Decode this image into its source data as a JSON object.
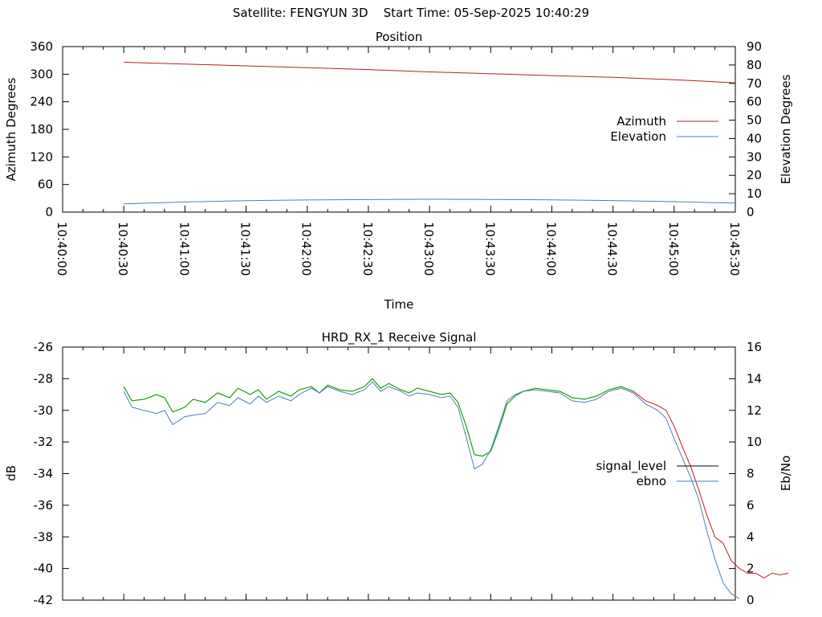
{
  "header": {
    "satellite_label": "Satellite: FENGYUN 3D",
    "start_label": "Start Time: 05-Sep-2025 10:40:29"
  },
  "colors": {
    "azimuth": "#b22222",
    "elevation": "#4a7fb5",
    "signal_level_legend": "#000000",
    "signal_level_trace": "#b22222",
    "signal_level_overlay": "#00b000",
    "ebno": "#4a7fb5"
  },
  "chart_data": [
    {
      "type": "line",
      "title": "Position",
      "xlabel": "Time",
      "ylabel": "Azimuth Degrees",
      "y2label": "Elevation Degrees",
      "x_ticks": [
        "10:40:00",
        "10:40:30",
        "10:41:00",
        "10:41:30",
        "10:42:00",
        "10:42:30",
        "10:43:00",
        "10:43:30",
        "10:44:00",
        "10:44:30",
        "10:45:00",
        "10:45:30"
      ],
      "x_range_seconds_after": [
        0,
        330
      ],
      "ylim": [
        0,
        360
      ],
      "y_ticks": [
        0,
        60,
        120,
        180,
        240,
        300,
        360
      ],
      "y2lim": [
        0,
        90
      ],
      "y2_ticks": [
        0,
        10,
        20,
        30,
        40,
        50,
        60,
        70,
        80,
        90
      ],
      "legend_position": "right",
      "series": [
        {
          "name": "Azimuth",
          "axis": "y",
          "color_key": "azimuth",
          "points": [
            [
              30,
              326
            ],
            [
              60,
              322
            ],
            [
              90,
              318
            ],
            [
              120,
              314
            ],
            [
              150,
              310
            ],
            [
              180,
              305
            ],
            [
              210,
              301
            ],
            [
              240,
              297
            ],
            [
              270,
              293
            ],
            [
              300,
              288
            ],
            [
              318,
              284
            ],
            [
              330,
              281
            ]
          ]
        },
        {
          "name": "Elevation",
          "axis": "y2",
          "color_key": "elevation",
          "points": [
            [
              30,
              4.5
            ],
            [
              60,
              5.5
            ],
            [
              90,
              6.2
            ],
            [
              120,
              6.6
            ],
            [
              150,
              6.8
            ],
            [
              180,
              7.0
            ],
            [
              210,
              6.9
            ],
            [
              240,
              6.7
            ],
            [
              270,
              6.3
            ],
            [
              300,
              5.7
            ],
            [
              318,
              5.2
            ],
            [
              330,
              4.9
            ]
          ]
        }
      ]
    },
    {
      "type": "line",
      "title": "HRD_RX_1 Receive Signal",
      "xlabel": "",
      "ylabel": "dB",
      "y2label": "Eb/No",
      "x_range_seconds_after": [
        0,
        330
      ],
      "ylim": [
        -42,
        -26
      ],
      "y_ticks": [
        -42,
        -40,
        -38,
        -36,
        -34,
        -32,
        -30,
        -28,
        -26
      ],
      "y2lim": [
        0,
        16
      ],
      "y2_ticks": [
        0,
        2,
        4,
        6,
        8,
        10,
        12,
        14,
        16
      ],
      "legend_position": "right",
      "series": [
        {
          "name": "signal_level",
          "axis": "y",
          "color_key": "signal_level_trace",
          "overlay_color_key": "signal_level_overlay",
          "overlay_until": 282,
          "points": [
            [
              30,
              -28.5
            ],
            [
              34,
              -29.4
            ],
            [
              40,
              -29.3
            ],
            [
              46,
              -29.0
            ],
            [
              50,
              -29.2
            ],
            [
              54,
              -30.1
            ],
            [
              60,
              -29.8
            ],
            [
              64,
              -29.3
            ],
            [
              70,
              -29.5
            ],
            [
              76,
              -28.9
            ],
            [
              82,
              -29.2
            ],
            [
              86,
              -28.6
            ],
            [
              92,
              -29.0
            ],
            [
              96,
              -28.7
            ],
            [
              100,
              -29.3
            ],
            [
              106,
              -28.8
            ],
            [
              112,
              -29.1
            ],
            [
              116,
              -28.7
            ],
            [
              122,
              -28.5
            ],
            [
              126,
              -28.9
            ],
            [
              130,
              -28.4
            ],
            [
              136,
              -28.7
            ],
            [
              142,
              -28.8
            ],
            [
              148,
              -28.5
            ],
            [
              152,
              -28.0
            ],
            [
              156,
              -28.6
            ],
            [
              160,
              -28.3
            ],
            [
              166,
              -28.7
            ],
            [
              170,
              -28.9
            ],
            [
              174,
              -28.6
            ],
            [
              180,
              -28.8
            ],
            [
              186,
              -29.0
            ],
            [
              190,
              -28.9
            ],
            [
              194,
              -29.5
            ],
            [
              198,
              -31.0
            ],
            [
              202,
              -32.8
            ],
            [
              206,
              -32.9
            ],
            [
              210,
              -32.6
            ],
            [
              214,
              -31.2
            ],
            [
              218,
              -29.6
            ],
            [
              222,
              -29.1
            ],
            [
              226,
              -28.8
            ],
            [
              232,
              -28.6
            ],
            [
              238,
              -28.7
            ],
            [
              244,
              -28.8
            ],
            [
              250,
              -29.2
            ],
            [
              256,
              -29.3
            ],
            [
              262,
              -29.1
            ],
            [
              268,
              -28.7
            ],
            [
              274,
              -28.5
            ],
            [
              280,
              -28.8
            ],
            [
              286,
              -29.4
            ],
            [
              292,
              -29.7
            ],
            [
              296,
              -30.0
            ],
            [
              300,
              -31.0
            ],
            [
              304,
              -32.3
            ],
            [
              308,
              -33.5
            ],
            [
              312,
              -35.0
            ],
            [
              316,
              -36.6
            ],
            [
              320,
              -38.0
            ],
            [
              324,
              -38.4
            ],
            [
              328,
              -39.5
            ],
            [
              332,
              -40.0
            ],
            [
              336,
              -40.3
            ],
            [
              340,
              -40.3
            ],
            [
              344,
              -40.6
            ],
            [
              348,
              -40.3
            ],
            [
              352,
              -40.4
            ],
            [
              356,
              -40.3
            ]
          ]
        },
        {
          "name": "ebno",
          "axis": "y2",
          "color_key": "ebno",
          "points": [
            [
              30,
              13.2
            ],
            [
              34,
              12.2
            ],
            [
              40,
              12.0
            ],
            [
              46,
              11.8
            ],
            [
              50,
              12.0
            ],
            [
              54,
              11.1
            ],
            [
              60,
              11.6
            ],
            [
              64,
              11.7
            ],
            [
              70,
              11.8
            ],
            [
              76,
              12.5
            ],
            [
              82,
              12.3
            ],
            [
              86,
              12.8
            ],
            [
              92,
              12.4
            ],
            [
              96,
              12.9
            ],
            [
              100,
              12.5
            ],
            [
              106,
              12.9
            ],
            [
              112,
              12.6
            ],
            [
              116,
              13.0
            ],
            [
              122,
              13.4
            ],
            [
              126,
              13.1
            ],
            [
              130,
              13.5
            ],
            [
              136,
              13.2
            ],
            [
              142,
              13.0
            ],
            [
              148,
              13.3
            ],
            [
              152,
              13.8
            ],
            [
              156,
              13.2
            ],
            [
              160,
              13.5
            ],
            [
              166,
              13.2
            ],
            [
              170,
              12.9
            ],
            [
              174,
              13.1
            ],
            [
              180,
              13.0
            ],
            [
              186,
              12.8
            ],
            [
              190,
              12.9
            ],
            [
              194,
              12.2
            ],
            [
              198,
              10.3
            ],
            [
              202,
              8.3
            ],
            [
              206,
              8.6
            ],
            [
              210,
              9.5
            ],
            [
              214,
              11.0
            ],
            [
              218,
              12.6
            ],
            [
              222,
              13.0
            ],
            [
              226,
              13.2
            ],
            [
              232,
              13.3
            ],
            [
              238,
              13.2
            ],
            [
              244,
              13.1
            ],
            [
              250,
              12.6
            ],
            [
              256,
              12.5
            ],
            [
              262,
              12.7
            ],
            [
              268,
              13.2
            ],
            [
              274,
              13.4
            ],
            [
              280,
              13.1
            ],
            [
              286,
              12.4
            ],
            [
              292,
              12.0
            ],
            [
              296,
              11.5
            ],
            [
              300,
              10.2
            ],
            [
              304,
              9.0
            ],
            [
              308,
              7.8
            ],
            [
              312,
              6.4
            ],
            [
              316,
              4.4
            ],
            [
              320,
              2.6
            ],
            [
              324,
              1.1
            ],
            [
              328,
              0.4
            ],
            [
              332,
              0.1
            ]
          ]
        }
      ]
    }
  ]
}
